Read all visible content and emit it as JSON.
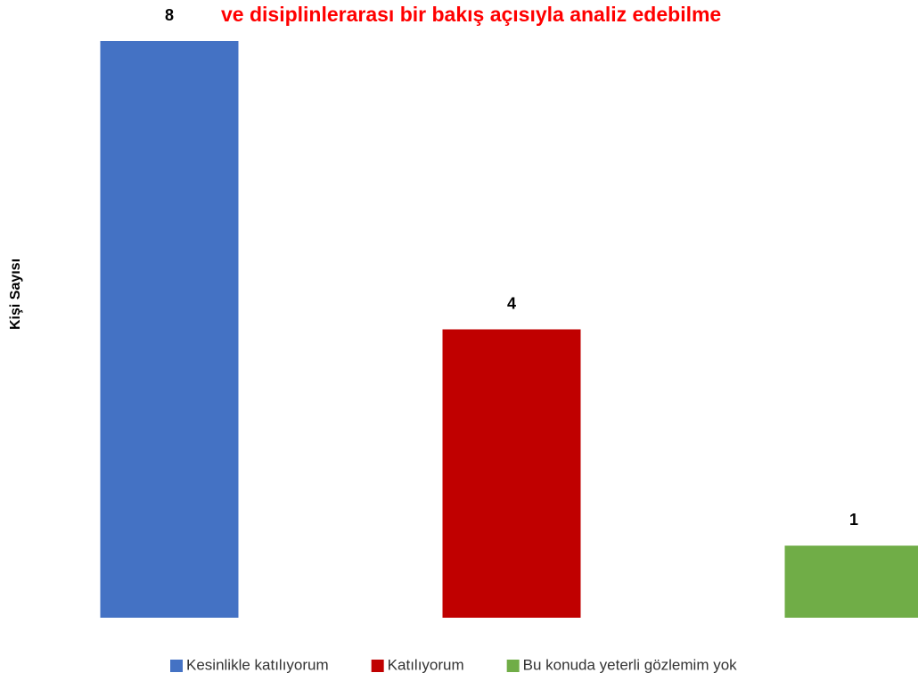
{
  "chart_data": {
    "type": "bar",
    "title": "ve disiplinlerarası bir bakış açısıyla analiz edebilme",
    "y_label": "Kişi Sayısı",
    "series": [
      {
        "name": "Kesinlikle katılıyorum",
        "color": "#4472c4",
        "values": [
          8
        ]
      },
      {
        "name": "Katılıyorum",
        "color": "#c00000",
        "values": [
          4
        ]
      },
      {
        "name": "Bu konuda yeterli gözlemim yok",
        "color": "#70ad47",
        "values": [
          1
        ]
      }
    ],
    "legend": "bottom"
  }
}
